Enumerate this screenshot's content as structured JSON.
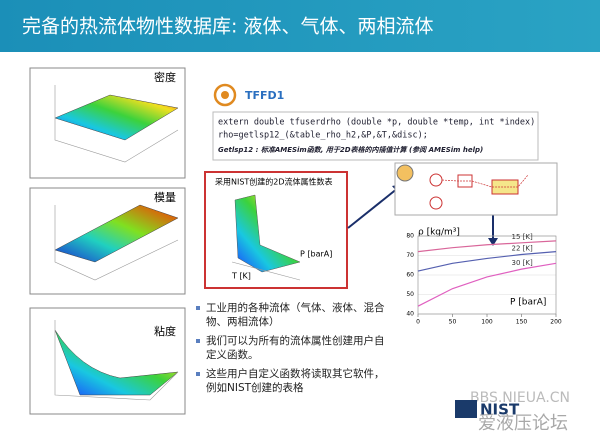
{
  "header": {
    "title": "完备的热流体物性数据库: 液体、气体、两相流体"
  },
  "left_plots": [
    "密度",
    "模量",
    "粘度"
  ],
  "tffd": {
    "label": "TFFD1",
    "code": [
      "extern double tfuserdrho (double *p, double *temp, int *index)",
      "rho=getlsp12_(&table_rho_h2,&P,&T,&disc);"
    ],
    "note": "Getlsp12 : 标准AMESim函数, 用于2D表格的内插值计算 (参阅 AMESim help)"
  },
  "nist_table": {
    "caption": "采用NIST创建的2D流体属性数表",
    "p_label": "P [barA]",
    "t_label": "T [K]"
  },
  "density_chart": {
    "type": "line",
    "y_label": "ρ [kg/m³]",
    "x_label": "P [barA]",
    "x": [
      0,
      50,
      100,
      150,
      200
    ],
    "xlim": [
      0,
      200
    ],
    "ylim": [
      40,
      80
    ],
    "xticks": [
      0,
      50,
      100,
      150,
      200
    ],
    "yticks": [
      40,
      50,
      60,
      70,
      80
    ],
    "series": [
      {
        "name": "15 [K]",
        "color": "#d9669a",
        "values": [
          72,
          74,
          75.5,
          76.5,
          77.5
        ]
      },
      {
        "name": "22 [K]",
        "color": "#5560b0",
        "values": [
          62,
          66,
          68.5,
          70.5,
          72
        ]
      },
      {
        "name": "30 [K]",
        "color": "#e060c0",
        "values": [
          44,
          53,
          59,
          63,
          66
        ]
      }
    ]
  },
  "bullets": [
    [
      "工业用的各种流体（气体、液体、混合",
      "物、两相流体）"
    ],
    [
      "我们可以为所有的流体属性创建用户自",
      "定义函数。"
    ],
    [
      "这些用户自定义函数将读取其它软件，",
      "例如NIST创建的表格"
    ]
  ],
  "footer": {
    "watermark": "BBS.NIEUA.CN",
    "forum": "爱液压论坛",
    "logo": "NIST"
  }
}
